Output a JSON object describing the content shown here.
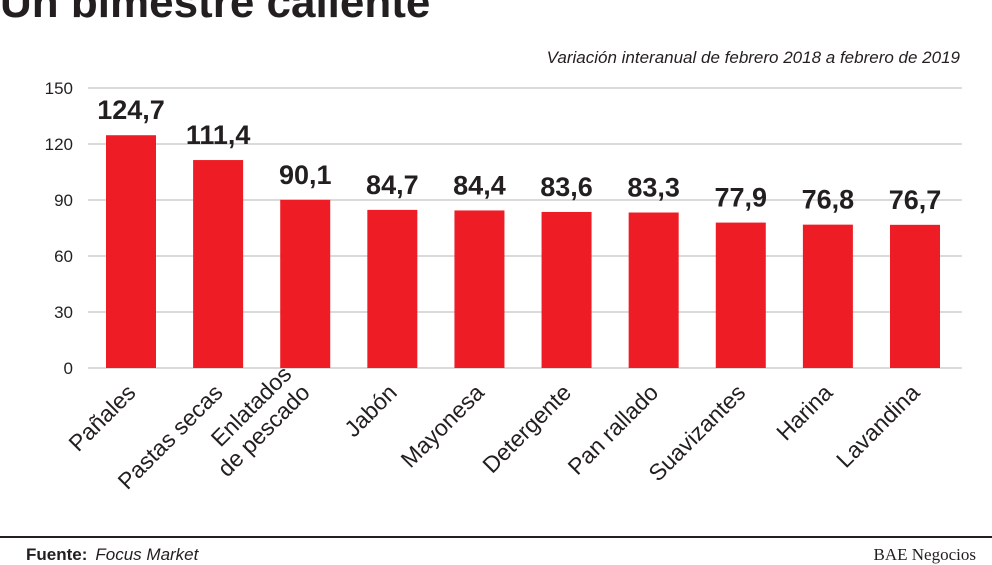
{
  "title": "Un bimestre caliente",
  "subtitle": "Variación interanual de febrero 2018 a febrero de 2019",
  "footer": {
    "source_label": "Fuente:",
    "source_value": "Focus Market",
    "credit": "BAE Negocios"
  },
  "colors": {
    "bar": "#ee1c24",
    "text": "#231f20",
    "grid": "#b5b5b5"
  },
  "chart_data": {
    "type": "bar",
    "title": "Un bimestre caliente",
    "subtitle": "Variación interanual de febrero 2018 a febrero de 2019",
    "categories": [
      "Pañales",
      "Pastas secas",
      "Enlatados de pescado",
      "Jabón",
      "Mayonesa",
      "Detergente",
      "Pan rallado",
      "Suavizantes",
      "Harina",
      "Lavandina"
    ],
    "category_lines": [
      [
        "Pañales"
      ],
      [
        "Pastas secas"
      ],
      [
        "Enlatados",
        "de pescado"
      ],
      [
        "Jabón"
      ],
      [
        "Mayonesa"
      ],
      [
        "Detergente"
      ],
      [
        "Pan rallado"
      ],
      [
        "Suavizantes"
      ],
      [
        "Harina"
      ],
      [
        "Lavandina"
      ]
    ],
    "values": [
      124.7,
      111.4,
      90.1,
      84.7,
      84.4,
      83.6,
      83.3,
      77.9,
      76.8,
      76.7
    ],
    "value_labels": [
      "124,7",
      "111,4",
      "90,1",
      "84,7",
      "84,4",
      "83,6",
      "83,3",
      "77,9",
      "76,8",
      "76,7"
    ],
    "yticks": [
      0,
      30,
      60,
      90,
      120,
      150
    ],
    "ytick_labels": [
      "0",
      "30",
      "60",
      "90",
      "120",
      "150"
    ],
    "ylim": [
      0,
      150
    ],
    "grid": true,
    "xlabel": "",
    "ylabel": ""
  }
}
